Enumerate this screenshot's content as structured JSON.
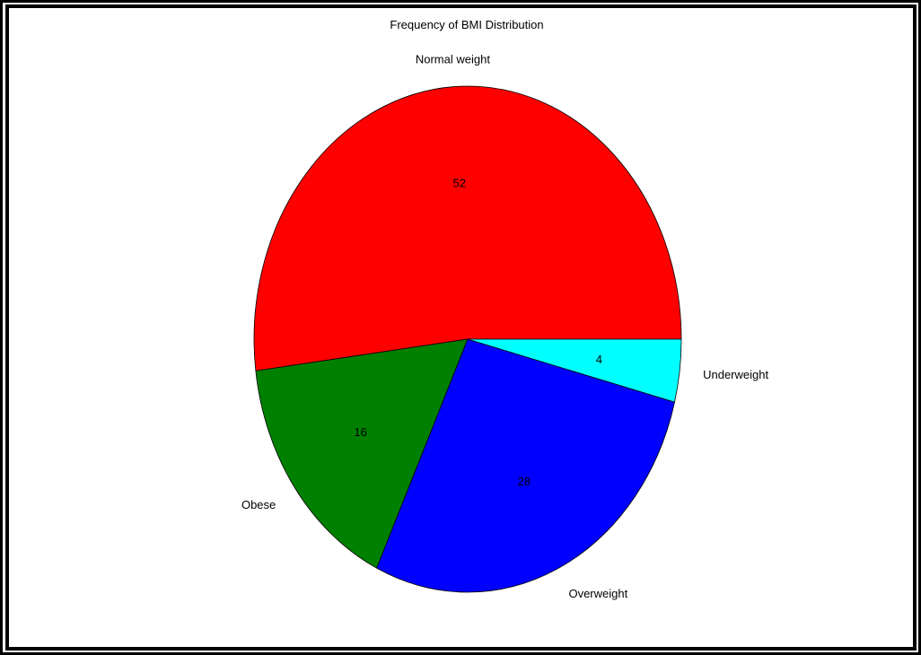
{
  "chart_data": {
    "type": "pie",
    "title": "Frequency of BMI Distribution",
    "categories": [
      "Normal weight",
      "Obese",
      "Overweight",
      "Underweight"
    ],
    "values": [
      52,
      16,
      28,
      4
    ],
    "colors": [
      "#ff0000",
      "#008000",
      "#0000ff",
      "#00ffff"
    ],
    "start_angle_deg": 0,
    "direction": "counterclockwise",
    "value_labels": "inside",
    "category_labels": "outside"
  }
}
